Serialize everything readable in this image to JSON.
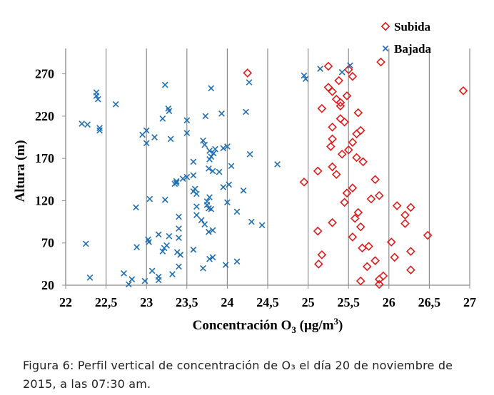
{
  "chart_data": {
    "type": "scatter",
    "xlabel": "Concentración O3 (µg/m3)",
    "xlabel_main": "Concentración O",
    "xlabel_sub": "3",
    "xlabel_rest": " (µg/m",
    "xlabel_sup": "3",
    "xlabel_end": ")",
    "ylabel": "Altura (m)",
    "xlim": [
      22,
      27
    ],
    "ylim": [
      20,
      300
    ],
    "x_ticks": [
      22,
      22.5,
      23,
      23.5,
      24,
      24.5,
      25,
      25.5,
      26,
      26.5,
      27
    ],
    "x_tick_labels": [
      "22",
      "22,5",
      "23",
      "23,5",
      "24",
      "24,5",
      "25",
      "25,5",
      "26",
      "26,5",
      "27"
    ],
    "y_ticks": [
      20,
      70,
      120,
      170,
      220,
      270
    ],
    "y_tick_labels": [
      "20",
      "70",
      "120",
      "170",
      "220",
      "270"
    ],
    "gridlines": "vertical",
    "legend_position": "top-right",
    "series": [
      {
        "name": "Subida",
        "marker": "diamond",
        "color": "#e01b1b",
        "points": [
          [
            24.25,
            271
          ],
          [
            25.25,
            279
          ],
          [
            25.9,
            284
          ],
          [
            25.5,
            275
          ],
          [
            25.55,
            267
          ],
          [
            25.38,
            262
          ],
          [
            25.25,
            254
          ],
          [
            25.3,
            249
          ],
          [
            25.48,
            244
          ],
          [
            25.35,
            240
          ],
          [
            25.4,
            236
          ],
          [
            25.4,
            232
          ],
          [
            25.17,
            229
          ],
          [
            25.62,
            224
          ],
          [
            25.4,
            217
          ],
          [
            25.45,
            213
          ],
          [
            25.3,
            207
          ],
          [
            25.65,
            203
          ],
          [
            25.6,
            199
          ],
          [
            25.3,
            193
          ],
          [
            25.55,
            189
          ],
          [
            25.28,
            184
          ],
          [
            25.5,
            180
          ],
          [
            25.42,
            175
          ],
          [
            25.6,
            171
          ],
          [
            25.68,
            166
          ],
          [
            25.3,
            160
          ],
          [
            25.12,
            155
          ],
          [
            25.35,
            151
          ],
          [
            25.83,
            145
          ],
          [
            24.95,
            142
          ],
          [
            25.55,
            135
          ],
          [
            25.48,
            129
          ],
          [
            25.88,
            126
          ],
          [
            25.78,
            122
          ],
          [
            25.45,
            118
          ],
          [
            26.1,
            114
          ],
          [
            26.27,
            112
          ],
          [
            25.62,
            106
          ],
          [
            26.2,
            103
          ],
          [
            25.58,
            99
          ],
          [
            25.3,
            94
          ],
          [
            26.2,
            93
          ],
          [
            25.65,
            89
          ],
          [
            25.12,
            84
          ],
          [
            26.48,
            79
          ],
          [
            25.55,
            77
          ],
          [
            26.03,
            71
          ],
          [
            25.75,
            66
          ],
          [
            25.67,
            64
          ],
          [
            26.27,
            60
          ],
          [
            25.17,
            56
          ],
          [
            26.07,
            53
          ],
          [
            25.83,
            49
          ],
          [
            25.13,
            45
          ],
          [
            25.73,
            42
          ],
          [
            26.27,
            38
          ],
          [
            25.93,
            31
          ],
          [
            25.88,
            27
          ],
          [
            25.65,
            25
          ],
          [
            25.88,
            21
          ],
          [
            26.92,
            250
          ]
        ]
      },
      {
        "name": "Bajada",
        "marker": "x",
        "color": "#1f6fb2",
        "points": [
          [
            25.52,
            280
          ],
          [
            25.15,
            276
          ],
          [
            25.42,
            272
          ],
          [
            24.95,
            268
          ],
          [
            24.97,
            264
          ],
          [
            24.27,
            260
          ],
          [
            23.23,
            257
          ],
          [
            23.8,
            253
          ],
          [
            22.38,
            248
          ],
          [
            22.38,
            244
          ],
          [
            22.4,
            240
          ],
          [
            22.62,
            234
          ],
          [
            23.27,
            229
          ],
          [
            23.28,
            226
          ],
          [
            24.23,
            225
          ],
          [
            23.93,
            223
          ],
          [
            23.73,
            220
          ],
          [
            23.2,
            217
          ],
          [
            23.5,
            215
          ],
          [
            22.2,
            211
          ],
          [
            22.27,
            210
          ],
          [
            22.42,
            206
          ],
          [
            22.42,
            203
          ],
          [
            23.0,
            203
          ],
          [
            23.5,
            200
          ],
          [
            22.95,
            198
          ],
          [
            23.1,
            195
          ],
          [
            23.3,
            193
          ],
          [
            23.7,
            191
          ],
          [
            23.0,
            188
          ],
          [
            23.72,
            186
          ],
          [
            24.0,
            184
          ],
          [
            23.95,
            182
          ],
          [
            23.85,
            181
          ],
          [
            23.78,
            179
          ],
          [
            23.83,
            176
          ],
          [
            24.28,
            175
          ],
          [
            23.8,
            172
          ],
          [
            23.78,
            169
          ],
          [
            23.58,
            166
          ],
          [
            24.62,
            163
          ],
          [
            24.05,
            161
          ],
          [
            23.77,
            158
          ],
          [
            23.82,
            155
          ],
          [
            23.9,
            154
          ],
          [
            23.58,
            150
          ],
          [
            23.5,
            148
          ],
          [
            23.45,
            146
          ],
          [
            23.37,
            143
          ],
          [
            23.37,
            141
          ],
          [
            23.35,
            140
          ],
          [
            24.02,
            139
          ],
          [
            23.95,
            136
          ],
          [
            23.6,
            134
          ],
          [
            23.58,
            131
          ],
          [
            24.2,
            132
          ],
          [
            23.62,
            128
          ],
          [
            23.78,
            124
          ],
          [
            23.04,
            122
          ],
          [
            23.23,
            121
          ],
          [
            23.75,
            119
          ],
          [
            24.0,
            118
          ],
          [
            23.75,
            115
          ],
          [
            23.62,
            113
          ],
          [
            22.87,
            112
          ],
          [
            23.77,
            111
          ],
          [
            23.8,
            110
          ],
          [
            24.12,
            107
          ],
          [
            23.62,
            103
          ],
          [
            23.4,
            101
          ],
          [
            23.68,
            97
          ],
          [
            24.3,
            95
          ],
          [
            23.72,
            92
          ],
          [
            24.43,
            91
          ],
          [
            23.4,
            87
          ],
          [
            23.82,
            85
          ],
          [
            23.77,
            83
          ],
          [
            23.15,
            80
          ],
          [
            23.28,
            78
          ],
          [
            23.4,
            76
          ],
          [
            23.02,
            74
          ],
          [
            23.03,
            71
          ],
          [
            22.25,
            69
          ],
          [
            23.25,
            67
          ],
          [
            22.88,
            65
          ],
          [
            23.22,
            64
          ],
          [
            23.58,
            62
          ],
          [
            23.2,
            60
          ],
          [
            23.38,
            59
          ],
          [
            23.42,
            56
          ],
          [
            23.82,
            53
          ],
          [
            23.78,
            51
          ],
          [
            24.12,
            48
          ],
          [
            23.98,
            44
          ],
          [
            23.4,
            42
          ],
          [
            23.7,
            40
          ],
          [
            23.07,
            37
          ],
          [
            22.72,
            34
          ],
          [
            23.32,
            33
          ],
          [
            23.15,
            30
          ],
          [
            22.3,
            29
          ],
          [
            22.82,
            27
          ],
          [
            23.15,
            26
          ],
          [
            22.98,
            25
          ],
          [
            22.78,
            21
          ]
        ]
      }
    ]
  },
  "caption": {
    "label": "Figura 6",
    "text": ":  Perfil vertical de concentración de O₃ el día 20 de noviembre de 2015, a las 07:30 am."
  }
}
